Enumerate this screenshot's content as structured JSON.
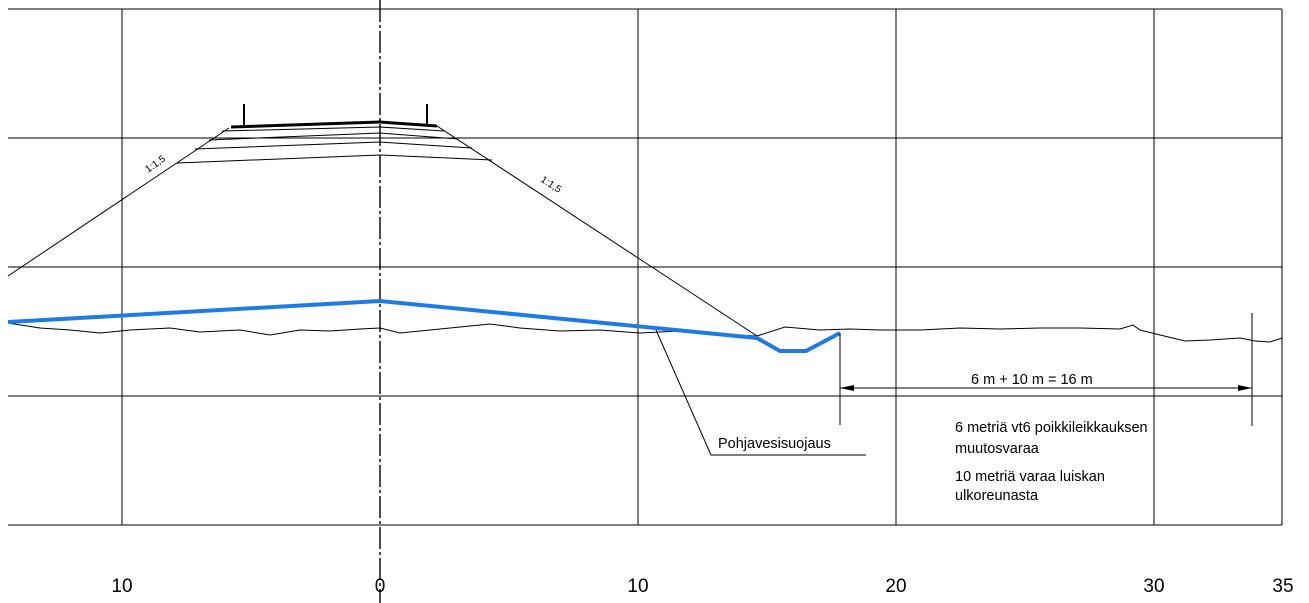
{
  "axis": {
    "x_labels": [
      "10",
      "0",
      "10",
      "20",
      "30",
      "35"
    ]
  },
  "slopes": {
    "left": "1:1,5",
    "right": "1:1,5"
  },
  "labels": {
    "groundwater_protection": "Pohjavesisuojaus",
    "dimension": "6 m + 10 m = 16 m",
    "note1_line1": "6 metriä vt6 poikkileikkauksen",
    "note1_line2": "muutosvaraa",
    "note2_line1": "10 metriä varaa luiskan",
    "note2_line2": "ulkoreunasta"
  },
  "colors": {
    "protection_line": "#1e7be6",
    "line": "#000000"
  }
}
